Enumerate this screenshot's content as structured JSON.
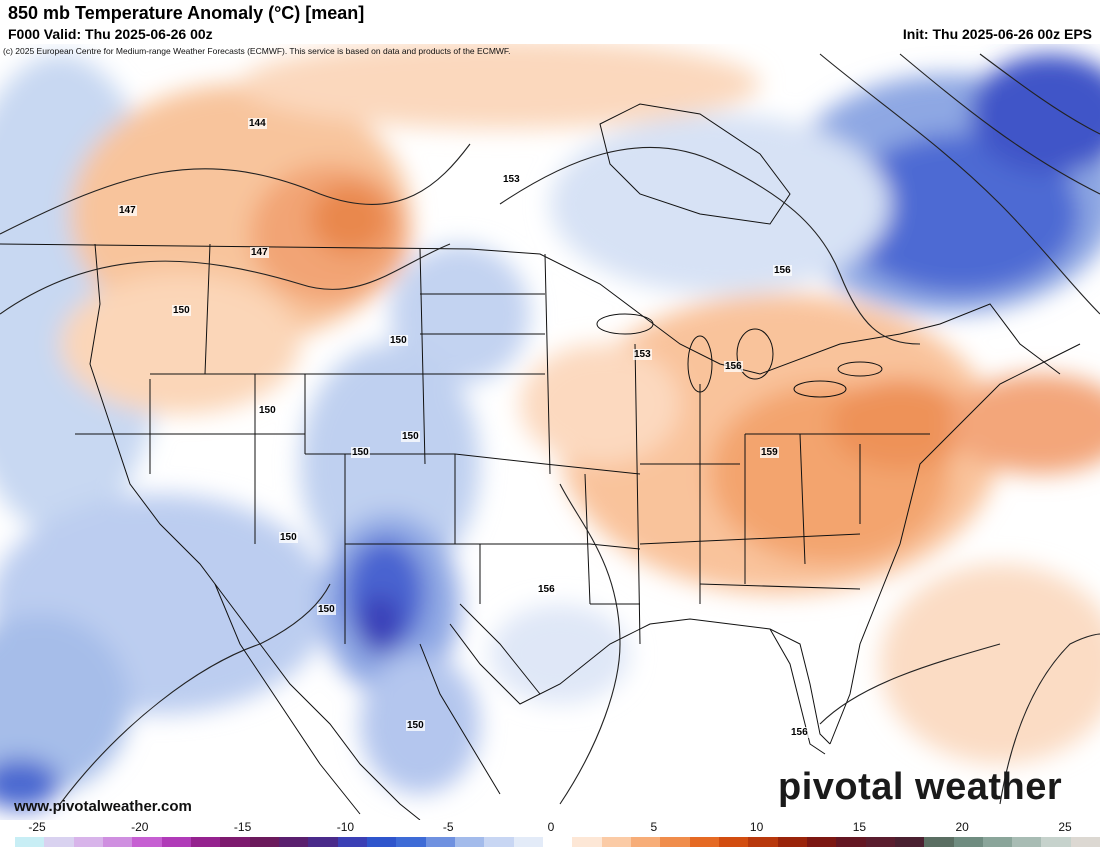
{
  "header": {
    "title": "850 mb Temperature Anomaly (°C) [mean]",
    "valid": "F000 Valid: Thu 2025-06-26 00z",
    "init": "Init: Thu 2025-06-26 00z EPS"
  },
  "map": {
    "credit": "(c) 2025 European Centre for Medium-range Weather Forecasts (ECMWF). This service is based on data and products of the ECMWF.",
    "website": "www.pivotalweather.com",
    "brand": "pivotal weather",
    "height_labels": [
      "144",
      "147",
      "147",
      "153",
      "150",
      "150",
      "156",
      "153",
      "156",
      "150",
      "150",
      "150",
      "159",
      "150",
      "156",
      "150",
      "150",
      "156"
    ]
  },
  "colorbar": {
    "ticks": [
      "-25",
      "-20",
      "-15",
      "-10",
      "-5",
      "0",
      "5",
      "10",
      "15",
      "20",
      "25"
    ],
    "colors": [
      "#c8eef5",
      "#d9d2f0",
      "#d8b4ea",
      "#cf8fe0",
      "#c65fd2",
      "#b03bb8",
      "#95228f",
      "#7d1a6e",
      "#6b1a5c",
      "#5a1f6e",
      "#4a2a8a",
      "#3b3fb5",
      "#2f55cc",
      "#3e6bd6",
      "#6f91e0",
      "#a3bbeb",
      "#c8d6f3",
      "#e3ebf8",
      "#ffffff",
      "#fde7d6",
      "#fbcba6",
      "#f7ad78",
      "#f08d4c",
      "#e56a24",
      "#d24d10",
      "#b8380c",
      "#9a240a",
      "#7c1712",
      "#641622",
      "#5a1d2e",
      "#4a2030",
      "#5a6e62",
      "#6f8c80",
      "#8aa59a",
      "#a8bcb4",
      "#c6d2cc",
      "#dcd8d2"
    ]
  }
}
